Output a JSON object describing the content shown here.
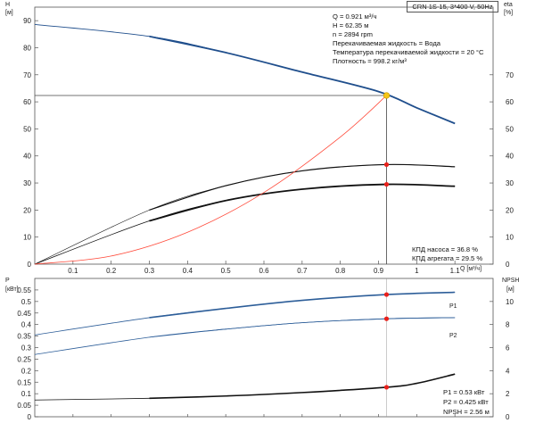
{
  "title": "CRN 1S-15, 3*400 V, 50Hz",
  "top_info": [
    "Q = 0.921 м³/ч",
    "H = 62.35 м",
    "n = 2894 rpm",
    "Перекачиваемая жидкость = Вода",
    "Температура перекачиваемой жидкости = 20 °C",
    "Плотность = 998.2 кг/м³"
  ],
  "top_eff_info": [
    "КПД насоса = 36.8 %",
    "КПД агрегата = 29.5 %"
  ],
  "bottom_info": [
    "P1 = 0.53 кВт",
    "P2 = 0.425 кВт",
    "NPSH = 2.56 м"
  ],
  "colors": {
    "head": "#1f4e8c",
    "power": "#2d5e99",
    "efficiency": "#111111",
    "system": "#ff4a3a",
    "point": "#e8201b",
    "duty": "#f5c518"
  },
  "chart_data": [
    {
      "type": "line",
      "panel": "top",
      "xlabel": "Q [м³/ч]",
      "ylabel": "H [м]",
      "y2label": "eta [%]",
      "xlim": [
        0,
        1.2
      ],
      "ylim": [
        0,
        95
      ],
      "y2lim": [
        0,
        95
      ],
      "x_ticks": [
        "0.1",
        "0.2",
        "0.3",
        "0.4",
        "0.5",
        "0.6",
        "0.7",
        "0.8",
        "0.9",
        "1",
        "1.1"
      ],
      "y_ticks": [
        "0",
        "10",
        "20",
        "30",
        "40",
        "50",
        "60",
        "70",
        "80",
        "90"
      ],
      "y2_ticks": [
        "0",
        "10",
        "20",
        "30",
        "40",
        "50",
        "60",
        "70"
      ],
      "grid": false,
      "series": [
        {
          "name": "H",
          "axis": "y",
          "x": [
            0,
            0.3,
            0.5,
            0.7,
            0.9,
            1.0,
            1.1
          ],
          "y": [
            88.6,
            84.2,
            78.2,
            71.0,
            63.8,
            57.8,
            52.0
          ]
        },
        {
          "axis": "y2",
          "x": [
            0,
            0.3,
            0.5,
            0.7,
            0.92,
            1.1
          ],
          "y": [
            0,
            20.0,
            29.0,
            34.5,
            36.8,
            36.0
          ]
        },
        {
          "axis": "y2",
          "x": [
            0,
            0.3,
            0.5,
            0.7,
            0.92,
            1.1
          ],
          "y": [
            0,
            16.0,
            23.5,
            27.7,
            29.5,
            28.8
          ]
        },
        {
          "axis": "y",
          "x": [
            0,
            0.2,
            0.4,
            0.6,
            0.8,
            0.921
          ],
          "y": [
            0,
            3.0,
            11.8,
            26.5,
            47.0,
            62.35
          ]
        }
      ],
      "duty_point": {
        "x": 0.921,
        "y": 62.35
      },
      "efficiency_points": [
        36.8,
        29.5
      ]
    },
    {
      "type": "line",
      "panel": "bottom",
      "xlabel": "",
      "ylabel": "P [кВт]",
      "y2label": "NPSH [м]",
      "xlim": [
        0,
        1.2
      ],
      "ylim": [
        0,
        0.6
      ],
      "y2lim": [
        0,
        12
      ],
      "y_ticks": [
        "0",
        "0.05",
        "0.1",
        "0.15",
        "0.2",
        "0.25",
        "0.3",
        "0.35",
        "0.4",
        "0.45",
        "0.5",
        "0.55"
      ],
      "y2_ticks": [
        "0",
        "2",
        "4",
        "6",
        "8",
        "10"
      ],
      "grid": false,
      "series": [
        {
          "name": "P1",
          "axis": "y",
          "x": [
            0,
            0.3,
            0.5,
            0.7,
            0.921,
            1.1
          ],
          "y": [
            0.355,
            0.43,
            0.47,
            0.505,
            0.53,
            0.54
          ]
        },
        {
          "name": "P2",
          "axis": "y",
          "x": [
            0,
            0.3,
            0.5,
            0.7,
            0.921,
            1.1
          ],
          "y": [
            0.27,
            0.345,
            0.38,
            0.408,
            0.425,
            0.43
          ]
        },
        {
          "axis": "y2",
          "x": [
            0,
            0.3,
            0.5,
            0.7,
            0.921,
            1.0,
            1.1
          ],
          "y": [
            1.45,
            1.6,
            1.8,
            2.1,
            2.56,
            2.9,
            3.7
          ]
        }
      ],
      "operating_points": {
        "P1": 0.53,
        "P2": 0.425,
        "NPSH": 2.56
      }
    }
  ]
}
